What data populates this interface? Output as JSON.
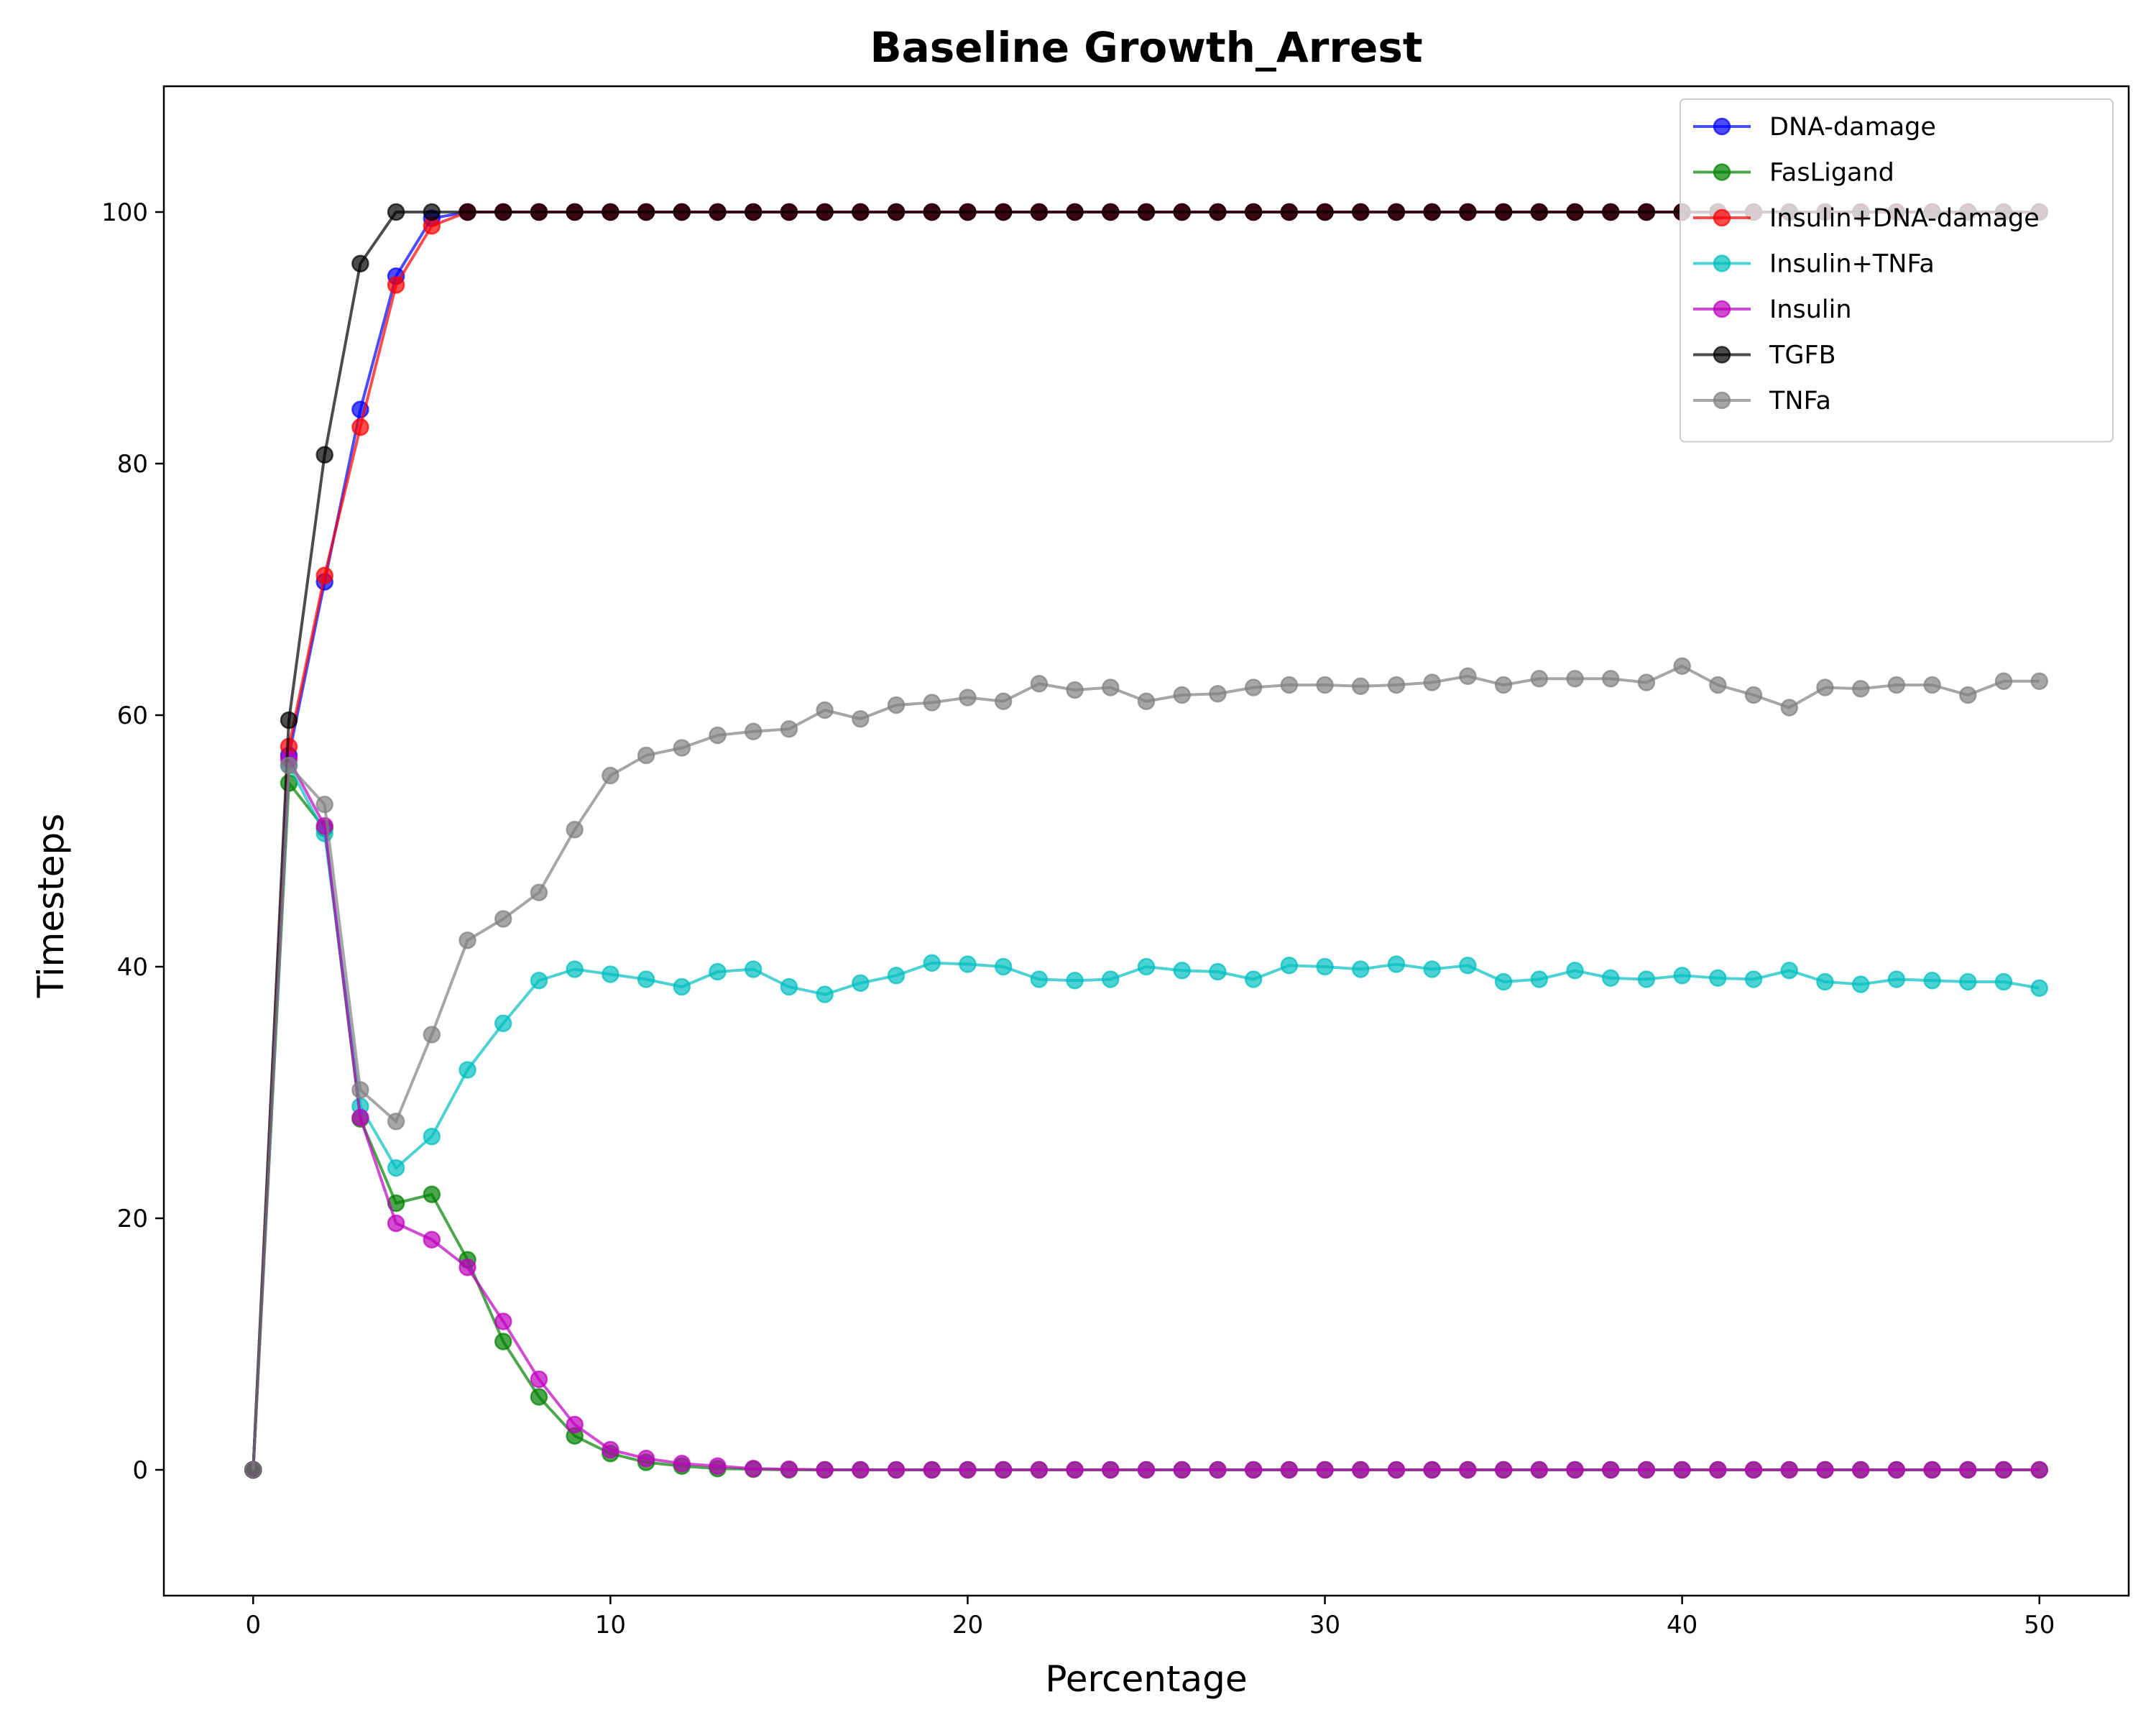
{
  "chart_data": {
    "type": "line",
    "title": "Baseline Growth_Arrest",
    "xlabel": "Percentage",
    "ylabel": "Timesteps",
    "xlim": [
      -2.5,
      52.5
    ],
    "ylim": [
      -10,
      110
    ],
    "xticks": [
      0,
      10,
      20,
      30,
      40,
      50
    ],
    "yticks": [
      0,
      20,
      40,
      60,
      80,
      100
    ],
    "grid": false,
    "legend_position": "top-right",
    "x": [
      0,
      1,
      2,
      3,
      4,
      5,
      6,
      7,
      8,
      9,
      10,
      11,
      12,
      13,
      14,
      15,
      16,
      17,
      18,
      19,
      20,
      21,
      22,
      23,
      24,
      25,
      26,
      27,
      28,
      29,
      30,
      31,
      32,
      33,
      34,
      35,
      36,
      37,
      38,
      39,
      40,
      41,
      42,
      43,
      44,
      45,
      46,
      47,
      48,
      49,
      50
    ],
    "series": [
      {
        "name": "DNA-damage",
        "color": "#0000ff",
        "values": [
          0,
          56.8,
          70.6,
          84.3,
          94.9,
          99.5,
          100,
          100,
          100,
          100,
          100,
          100,
          100,
          100,
          100,
          100,
          100,
          100,
          100,
          100,
          100,
          100,
          100,
          100,
          100,
          100,
          100,
          100,
          100,
          100,
          100,
          100,
          100,
          100,
          100,
          100,
          100,
          100,
          100,
          100,
          100,
          100,
          100,
          100,
          100,
          100,
          100,
          100,
          100,
          100,
          100
        ]
      },
      {
        "name": "FasLigand",
        "color": "#008000",
        "values": [
          0,
          54.6,
          51.0,
          27.9,
          21.2,
          21.9,
          16.7,
          10.2,
          5.8,
          2.7,
          1.3,
          0.6,
          0.3,
          0.1,
          0.05,
          0,
          0,
          0,
          0,
          0,
          0,
          0,
          0,
          0,
          0,
          0,
          0,
          0,
          0,
          0,
          0,
          0,
          0,
          0,
          0,
          0,
          0,
          0,
          0,
          0,
          0,
          0,
          0,
          0,
          0,
          0,
          0,
          0,
          0,
          0,
          0
        ]
      },
      {
        "name": "Insulin+DNA-damage",
        "color": "#ff0000",
        "values": [
          0,
          57.5,
          71.1,
          82.9,
          94.2,
          98.9,
          100,
          100,
          100,
          100,
          100,
          100,
          100,
          100,
          100,
          100,
          100,
          100,
          100,
          100,
          100,
          100,
          100,
          100,
          100,
          100,
          100,
          100,
          100,
          100,
          100,
          100,
          100,
          100,
          100,
          100,
          100,
          100,
          100,
          100,
          100,
          100,
          100,
          100,
          100,
          100,
          100,
          100,
          100,
          100,
          100
        ]
      },
      {
        "name": "Insulin+TNFa",
        "color": "#00bfbf",
        "values": [
          0,
          56.0,
          50.6,
          28.9,
          24.0,
          26.5,
          31.8,
          35.5,
          38.9,
          39.8,
          39.4,
          39.0,
          38.4,
          39.6,
          39.8,
          38.4,
          37.8,
          38.7,
          39.3,
          40.3,
          40.2,
          40.0,
          39.0,
          38.9,
          39.0,
          40.0,
          39.7,
          39.6,
          39.0,
          40.1,
          40.0,
          39.8,
          40.2,
          39.8,
          40.1,
          38.8,
          39.0,
          39.7,
          39.1,
          39.0,
          39.3,
          39.1,
          39.0,
          39.7,
          38.8,
          38.6,
          39.0,
          38.9,
          38.8,
          38.8,
          38.3
        ]
      },
      {
        "name": "Insulin",
        "color": "#bf00bf",
        "values": [
          0,
          56.5,
          51.2,
          28.0,
          19.6,
          18.3,
          16.1,
          11.8,
          7.2,
          3.6,
          1.6,
          0.9,
          0.5,
          0.3,
          0.1,
          0.05,
          0,
          0,
          0,
          0,
          0,
          0,
          0,
          0,
          0,
          0,
          0,
          0,
          0,
          0,
          0,
          0,
          0,
          0,
          0,
          0,
          0,
          0,
          0,
          0,
          0,
          0,
          0,
          0,
          0,
          0,
          0,
          0,
          0,
          0,
          0
        ]
      },
      {
        "name": "TGFB",
        "color": "#000000",
        "values": [
          0,
          59.6,
          80.7,
          95.9,
          100,
          100,
          100,
          100,
          100,
          100,
          100,
          100,
          100,
          100,
          100,
          100,
          100,
          100,
          100,
          100,
          100,
          100,
          100,
          100,
          100,
          100,
          100,
          100,
          100,
          100,
          100,
          100,
          100,
          100,
          100,
          100,
          100,
          100,
          100,
          100,
          100,
          100,
          100,
          100,
          100,
          100,
          100,
          100,
          100,
          100,
          100
        ]
      },
      {
        "name": "TNFa",
        "color": "#808080",
        "values": [
          0,
          56.0,
          52.9,
          30.2,
          27.7,
          34.6,
          42.1,
          43.8,
          45.9,
          50.9,
          55.2,
          56.8,
          57.4,
          58.4,
          58.7,
          58.9,
          60.4,
          59.7,
          60.8,
          61.0,
          61.4,
          61.1,
          62.5,
          62.0,
          62.2,
          61.1,
          61.6,
          61.7,
          62.2,
          62.4,
          62.4,
          62.3,
          62.4,
          62.6,
          63.1,
          62.4,
          62.9,
          62.9,
          62.9,
          62.6,
          63.9,
          62.4,
          61.6,
          60.6,
          62.2,
          62.1,
          62.4,
          62.4,
          61.6,
          62.7,
          62.7
        ]
      }
    ]
  }
}
